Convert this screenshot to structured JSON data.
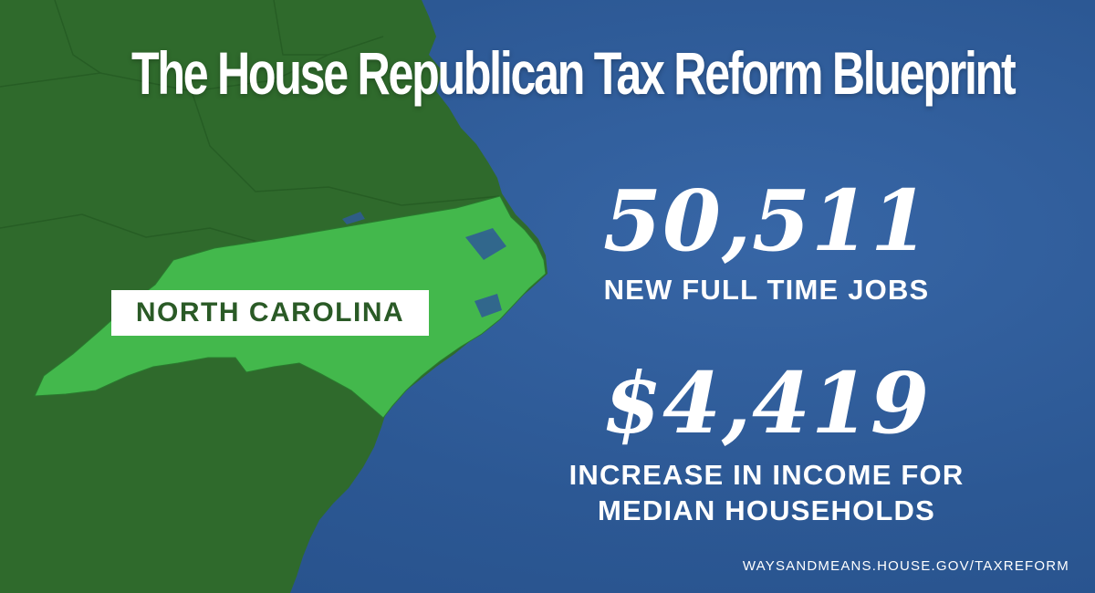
{
  "header": {
    "title": "The House Republican Tax Reform Blueprint"
  },
  "map": {
    "state_label": "NORTH CAROLINA",
    "icon": "state-map",
    "colors": {
      "land": "#2f6a2c",
      "highlight": "#43b84c",
      "ocean": "#2f5a98"
    }
  },
  "stats": [
    {
      "value": "50,511",
      "caption_lines": [
        "NEW FULL TIME JOBS"
      ]
    },
    {
      "value": "$4,419",
      "caption_lines": [
        "INCREASE IN INCOME FOR",
        "MEDIAN HOUSEHOLDS"
      ]
    }
  ],
  "footer": {
    "url": "WAYSANDMEANS.HOUSE.GOV/TAXREFORM"
  }
}
